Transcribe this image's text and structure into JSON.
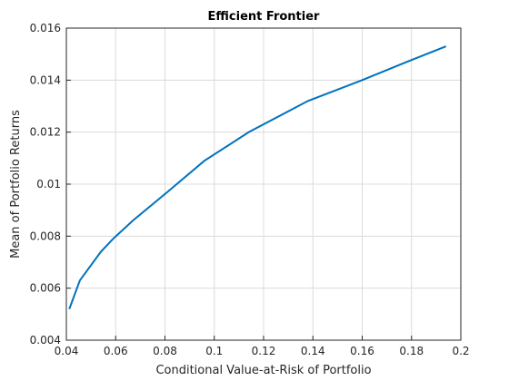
{
  "chart_data": {
    "type": "line",
    "title": "Efficient Frontier",
    "xlabel": "Conditional Value-at-Risk of Portfolio",
    "ylabel": "Mean of Portfolio Returns",
    "x": [
      0.0412,
      0.0455,
      0.054,
      0.059,
      0.067,
      0.081,
      0.096,
      0.114,
      0.138,
      0.16,
      0.178,
      0.194
    ],
    "series": [
      {
        "color": "#0072bd",
        "values": [
          0.0052,
          0.0063,
          0.0074,
          0.0079,
          0.0086,
          0.0097,
          0.0109,
          0.012,
          0.0132,
          0.014,
          0.0147,
          0.0153
        ]
      }
    ],
    "xlim": [
      0.04,
      0.2
    ],
    "xticks": [
      0.04,
      0.06,
      0.08,
      0.1,
      0.12,
      0.14,
      0.16,
      0.18,
      0.2
    ],
    "ylim": [
      0.004,
      0.016
    ],
    "yticks": [
      0.004,
      0.006,
      0.008,
      0.01,
      0.012,
      0.014,
      0.016
    ],
    "grid": true
  }
}
